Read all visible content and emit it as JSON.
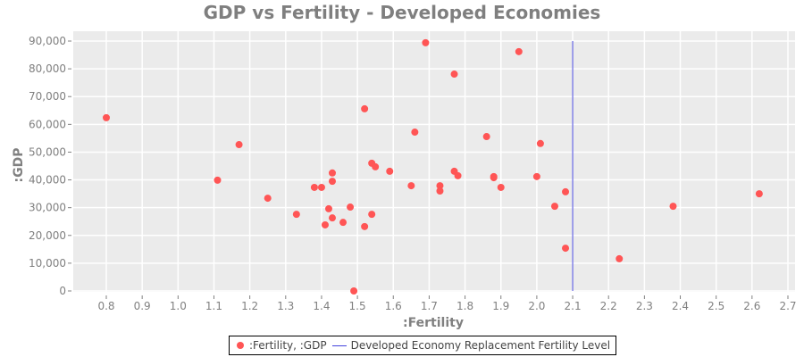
{
  "chart_data": {
    "type": "scatter",
    "title": "GDP vs Fertility - Developed Economies",
    "xlabel": ":Fertility",
    "ylabel": ":GDP",
    "xlim": [
      0.72,
      2.72
    ],
    "ylim": [
      0,
      92000
    ],
    "x_ticks": [
      0.8,
      0.9,
      1.0,
      1.1,
      1.2,
      1.3,
      1.4,
      1.5,
      1.6,
      1.7,
      1.8,
      1.9,
      2.0,
      2.1,
      2.2,
      2.3,
      2.4,
      2.5,
      2.6,
      2.7
    ],
    "x_tick_labels": [
      "0.8",
      "0.9",
      "1.0",
      "1.1",
      "1.2",
      "1.3",
      "1.4",
      "1.5",
      "1.6",
      "1.7",
      "1.8",
      "1.9",
      "2.0",
      "2.1",
      "2.2",
      "2.3",
      "2.4",
      "2.5",
      "2.6",
      "2.7"
    ],
    "y_ticks": [
      0,
      10000,
      20000,
      30000,
      40000,
      50000,
      60000,
      70000,
      80000,
      90000
    ],
    "y_tick_labels": [
      "0",
      "10,000",
      "20,000",
      "30,000",
      "40,000",
      "50,000",
      "60,000",
      "70,000",
      "80,000",
      "90,000"
    ],
    "grid": true,
    "legend_position": "bottom",
    "series": [
      {
        "name": ":Fertility, :GDP",
        "kind": "scatter",
        "color": "#ff5555",
        "points": [
          [
            0.8,
            62400
          ],
          [
            1.11,
            39900
          ],
          [
            1.17,
            52700
          ],
          [
            1.25,
            33400
          ],
          [
            1.33,
            27600
          ],
          [
            1.38,
            37300
          ],
          [
            1.4,
            37300
          ],
          [
            1.41,
            23800
          ],
          [
            1.42,
            29600
          ],
          [
            1.43,
            42500
          ],
          [
            1.43,
            39500
          ],
          [
            1.43,
            26300
          ],
          [
            1.46,
            24700
          ],
          [
            1.48,
            30200
          ],
          [
            1.49,
            0
          ],
          [
            1.52,
            65600
          ],
          [
            1.52,
            23200
          ],
          [
            1.54,
            27600
          ],
          [
            1.54,
            46000
          ],
          [
            1.55,
            44700
          ],
          [
            1.59,
            43100
          ],
          [
            1.65,
            37900
          ],
          [
            1.66,
            57200
          ],
          [
            1.69,
            89400
          ],
          [
            1.73,
            37900
          ],
          [
            1.73,
            36000
          ],
          [
            1.77,
            78100
          ],
          [
            1.77,
            43100
          ],
          [
            1.78,
            41500
          ],
          [
            1.86,
            55600
          ],
          [
            1.88,
            40800
          ],
          [
            1.88,
            41200
          ],
          [
            1.9,
            37300
          ],
          [
            1.95,
            86200
          ],
          [
            2.0,
            41200
          ],
          [
            2.01,
            53100
          ],
          [
            2.05,
            30500
          ],
          [
            2.08,
            35700
          ],
          [
            2.08,
            15400
          ],
          [
            2.23,
            11600
          ],
          [
            2.38,
            30500
          ],
          [
            2.62,
            35000
          ]
        ]
      },
      {
        "name": "Developed Economy Replacement Fertility Level",
        "kind": "line",
        "color": "#4444dd",
        "points": [
          [
            2.1,
            0
          ],
          [
            2.1,
            90000
          ]
        ]
      }
    ]
  },
  "legend": {
    "scatter_label": ":Fertility, :GDP",
    "line_label": "Developed Economy Replacement Fertility Level"
  }
}
